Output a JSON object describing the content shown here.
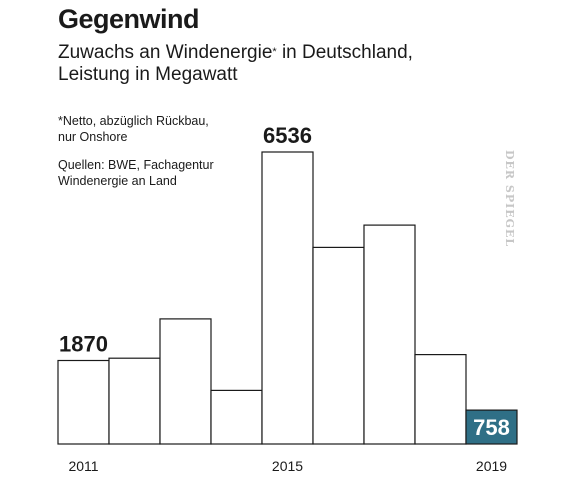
{
  "title": "Gegenwind",
  "subtitle_part1": "Zuwachs an Windenergie",
  "subtitle_mark": "*",
  "subtitle_part2": " in Deutschland,",
  "subtitle_line2": "Leistung in Megawatt",
  "note_footnote_line1": "*Netto, abzüglich Rückbau,",
  "note_footnote_line2": "nur Onshore",
  "note_sources_line1": "Quellen: BWE, Fachagentur",
  "note_sources_line2": "Windenergie an Land",
  "watermark": "DER SPIEGEL",
  "colors": {
    "highlight": "#2f6f86",
    "outline": "#1a1a1a"
  },
  "chart_data": {
    "type": "bar",
    "title": "Gegenwind",
    "subtitle": "Zuwachs an Windenergie* in Deutschland, Leistung in Megawatt",
    "categories": [
      "2011",
      "2012",
      "2013",
      "2014",
      "2015",
      "2016",
      "2017",
      "2018",
      "2019"
    ],
    "values": [
      1870,
      1920,
      2800,
      1200,
      6536,
      4400,
      4900,
      2000,
      758
    ],
    "tick_labels": [
      "2011",
      "",
      "",
      "",
      "2015",
      "",
      "",
      "",
      "2019"
    ],
    "labeled_values": {
      "2011": "1870",
      "2015": "6536",
      "2019": "758"
    },
    "highlight_category": "2019",
    "ylim": [
      0,
      6536
    ],
    "grid": false,
    "legend": "none",
    "xlabel": "",
    "ylabel": ""
  }
}
